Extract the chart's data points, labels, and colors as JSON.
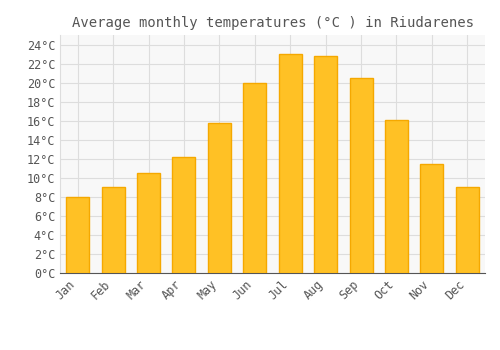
{
  "title": "Average monthly temperatures (°C ) in Riudarenes",
  "months": [
    "Jan",
    "Feb",
    "Mar",
    "Apr",
    "May",
    "Jun",
    "Jul",
    "Aug",
    "Sep",
    "Oct",
    "Nov",
    "Dec"
  ],
  "values": [
    8.0,
    9.0,
    10.5,
    12.2,
    15.8,
    20.0,
    23.0,
    22.8,
    20.5,
    16.1,
    11.4,
    9.0
  ],
  "bar_color_main": "#FFC125",
  "bar_color_edge": "#F5A800",
  "background_color": "#FFFFFF",
  "plot_bg_color": "#F8F8F8",
  "grid_color": "#DDDDDD",
  "text_color": "#555555",
  "ylim": [
    0,
    25
  ],
  "ytick_step": 2,
  "title_fontsize": 10,
  "tick_fontsize": 8.5,
  "font_family": "monospace"
}
